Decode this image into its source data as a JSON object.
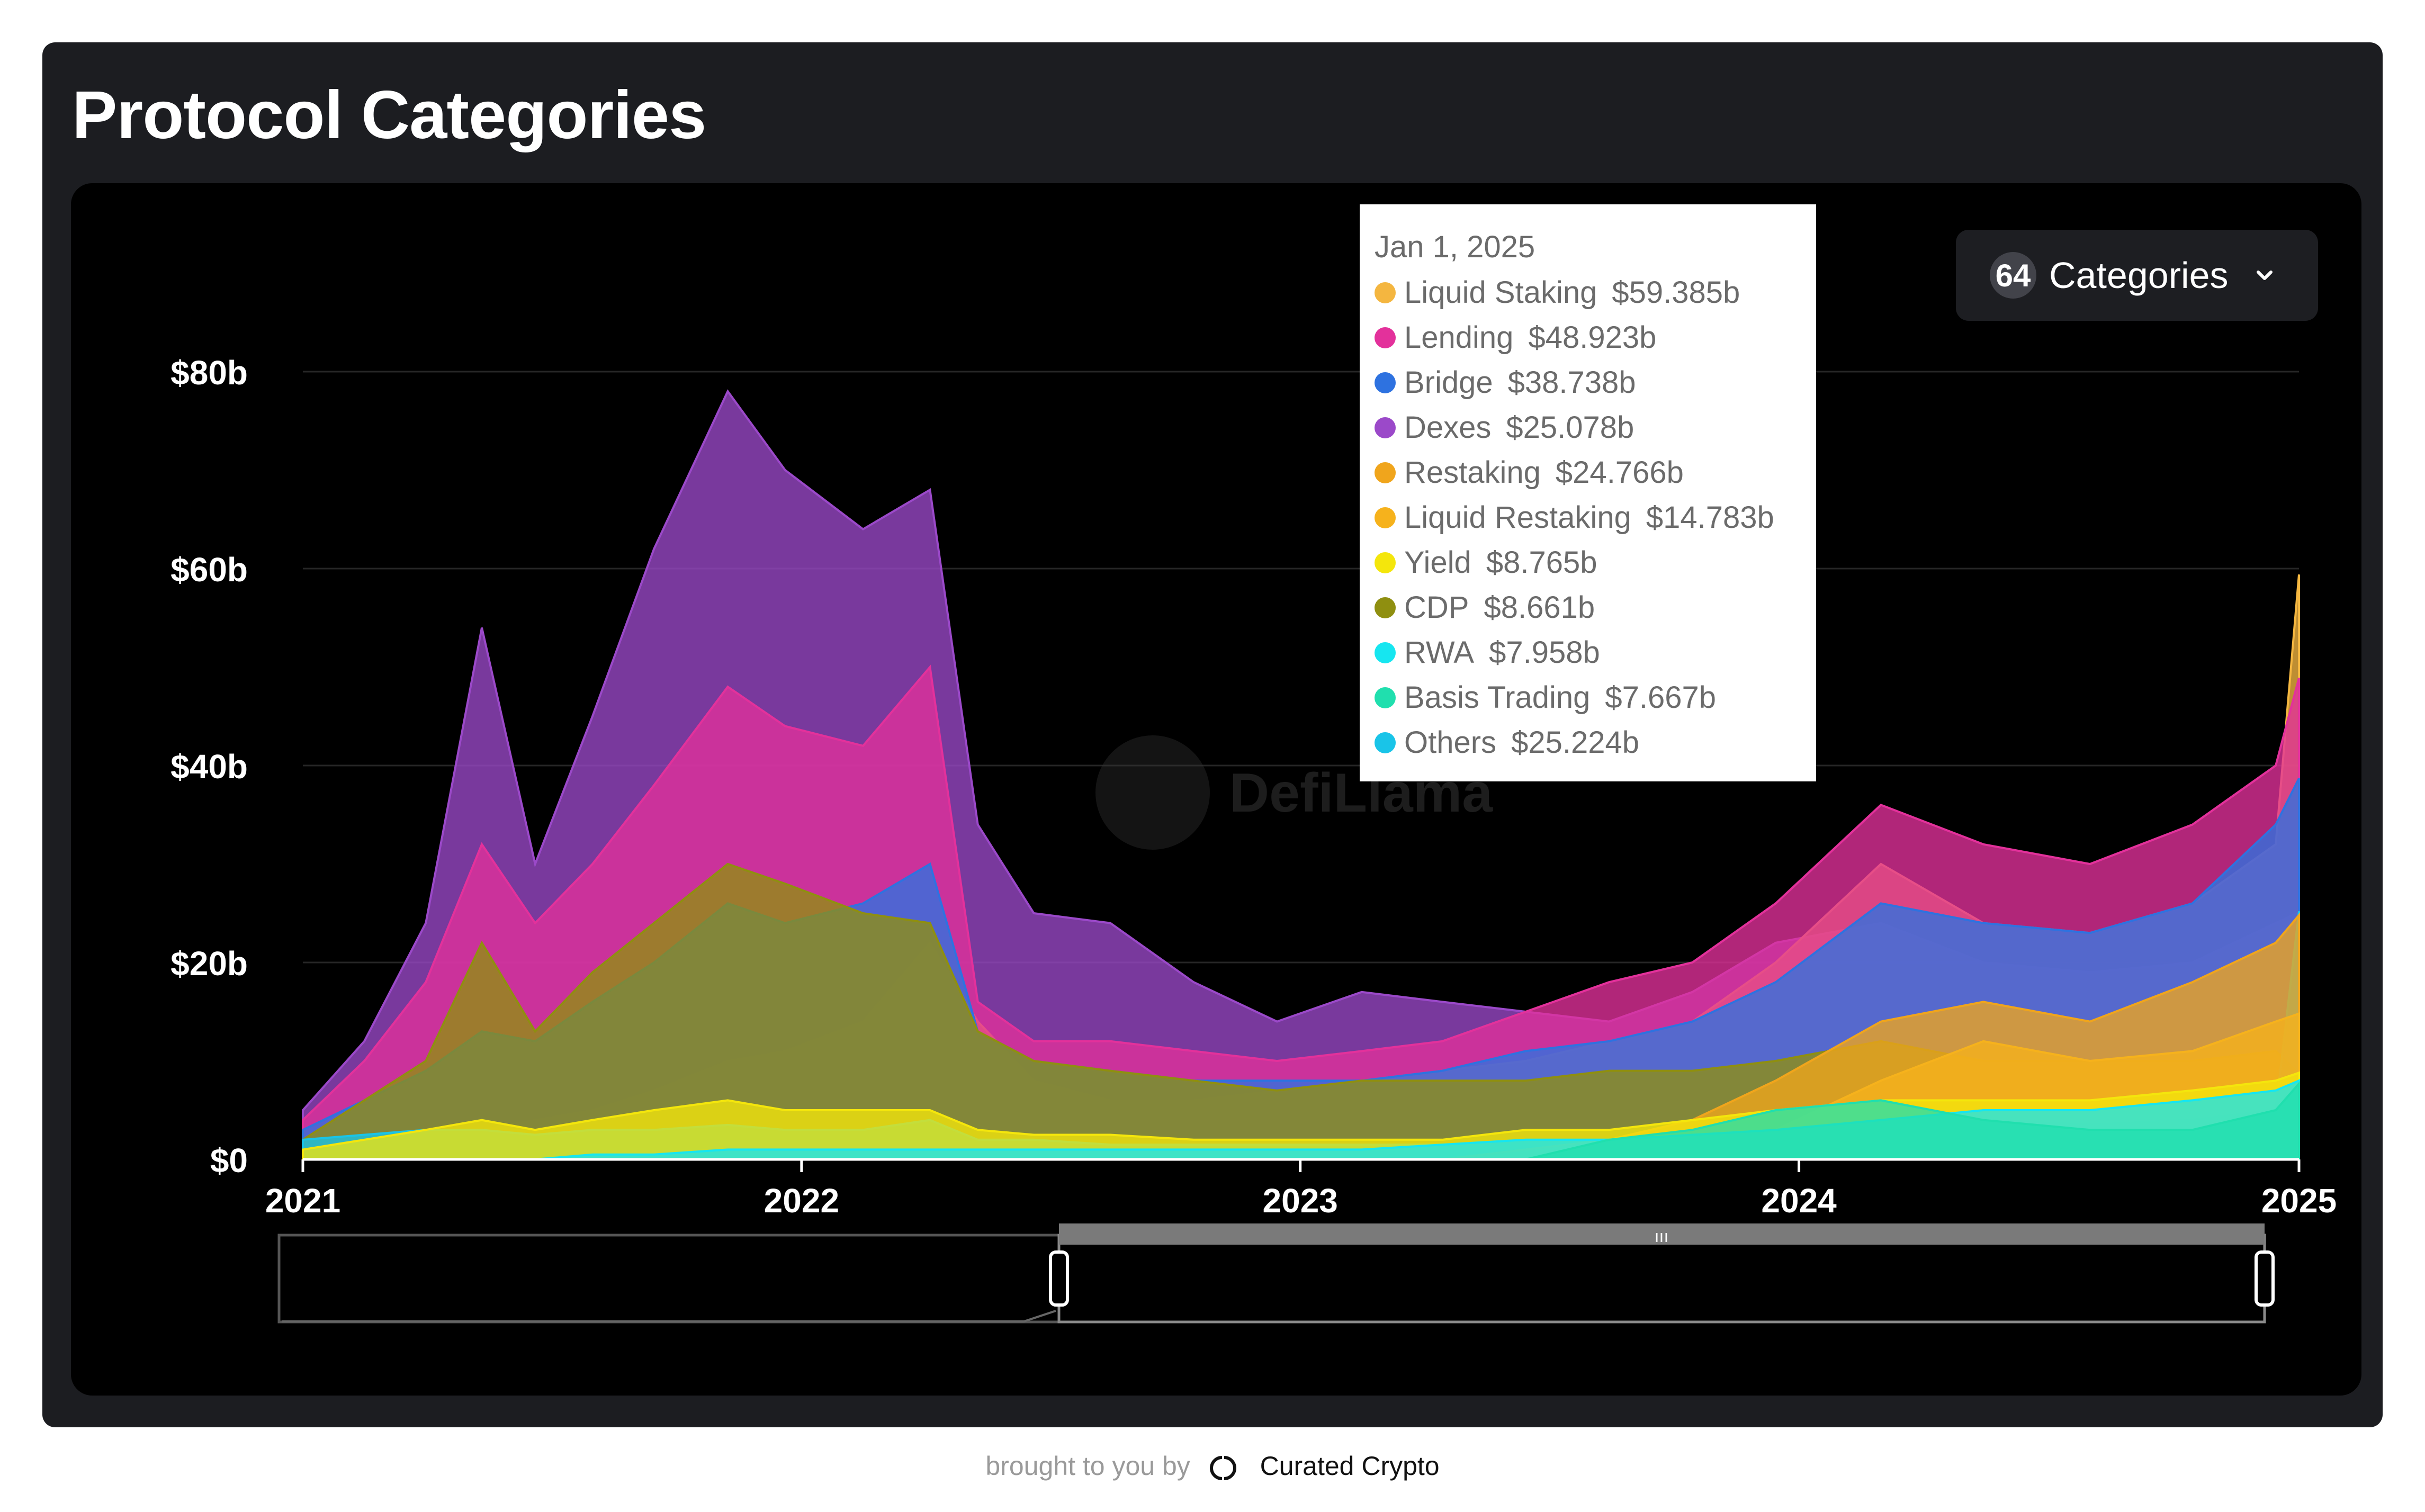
{
  "page": {
    "title": "Protocol Categories",
    "footer_prefix": "brought to you by",
    "footer_brand": "Curated Crypto"
  },
  "controls": {
    "categories_count": "64",
    "categories_label": "Categories"
  },
  "watermark": {
    "text": "DefiLlama"
  },
  "tooltip": {
    "date": "Jan 1, 2025",
    "rows": [
      {
        "name": "Liquid Staking",
        "value": "$59.385b",
        "color": "#f4b640"
      },
      {
        "name": "Lending",
        "value": "$48.923b",
        "color": "#e3319b"
      },
      {
        "name": "Bridge",
        "value": "$38.738b",
        "color": "#2e72e0"
      },
      {
        "name": "Dexes",
        "value": "$25.078b",
        "color": "#9b49c9"
      },
      {
        "name": "Restaking",
        "value": "$24.766b",
        "color": "#f0a51c"
      },
      {
        "name": "Liquid Restaking",
        "value": "$14.783b",
        "color": "#f6b21c"
      },
      {
        "name": "Yield",
        "value": "$8.765b",
        "color": "#f4e60c"
      },
      {
        "name": "CDP",
        "value": "$8.661b",
        "color": "#8f8f10"
      },
      {
        "name": "RWA",
        "value": "$7.958b",
        "color": "#16e6f0"
      },
      {
        "name": "Basis Trading",
        "value": "$7.667b",
        "color": "#20dfae"
      },
      {
        "name": "Others",
        "value": "$25.224b",
        "color": "#19c4e8"
      }
    ]
  },
  "chart_data": {
    "type": "area",
    "x_ticks": [
      "2021",
      "2022",
      "2023",
      "2024",
      "2025"
    ],
    "y_ticks": [
      "$0",
      "$20b",
      "$40b",
      "$60b",
      "$80b"
    ],
    "ylim": [
      0,
      80
    ],
    "y_unit": "billions USD",
    "x": [
      "2021-01-01",
      "2021-02-15",
      "2021-04-01",
      "2021-05-12",
      "2021-06-20",
      "2021-08-01",
      "2021-09-15",
      "2021-11-08",
      "2021-12-20",
      "2022-02-15",
      "2022-04-05",
      "2022-05-10",
      "2022-06-20",
      "2022-08-15",
      "2022-10-15",
      "2022-12-15",
      "2023-02-15",
      "2023-04-15",
      "2023-06-15",
      "2023-08-15",
      "2023-10-15",
      "2023-12-15",
      "2024-03-01",
      "2024-05-15",
      "2024-08-01",
      "2024-10-15",
      "2024-12-15",
      "2025-01-01"
    ],
    "series": [
      {
        "name": "Liquid Staking",
        "color": "#f4b640",
        "values": [
          1,
          1.5,
          2,
          3,
          4,
          5,
          7,
          10,
          11,
          14,
          22,
          14,
          8,
          6,
          6,
          7,
          8,
          9,
          10,
          12,
          14,
          20,
          30,
          24,
          23,
          26,
          32,
          59.4
        ]
      },
      {
        "name": "Lending",
        "color": "#e3319b",
        "values": [
          4,
          10,
          18,
          32,
          24,
          30,
          38,
          48,
          44,
          42,
          50,
          16,
          12,
          12,
          11,
          10,
          11,
          12,
          15,
          18,
          20,
          26,
          36,
          32,
          30,
          34,
          40,
          48.9
        ]
      },
      {
        "name": "Bridge",
        "color": "#2e72e0",
        "values": [
          3,
          6,
          9,
          13,
          12,
          16,
          20,
          26,
          24,
          26,
          30,
          13,
          10,
          9,
          8,
          8,
          8,
          9,
          11,
          12,
          14,
          18,
          26,
          24,
          23,
          26,
          34,
          38.7
        ]
      },
      {
        "name": "Dexes",
        "color": "#9b49c9",
        "values": [
          5,
          12,
          24,
          54,
          30,
          45,
          62,
          78,
          70,
          64,
          68,
          34,
          25,
          24,
          18,
          14,
          17,
          16,
          15,
          14,
          17,
          22,
          24,
          20,
          19,
          20,
          24,
          25.1
        ]
      },
      {
        "name": "Restaking",
        "color": "#f0a51c",
        "values": [
          0,
          0,
          0,
          0,
          0,
          0,
          0,
          0,
          0,
          0,
          0,
          0,
          0,
          0,
          0,
          0,
          0,
          0,
          1,
          2,
          4,
          8,
          14,
          16,
          14,
          18,
          22,
          24.8
        ]
      },
      {
        "name": "Liquid Restaking",
        "color": "#f6b21c",
        "values": [
          0,
          0,
          0,
          0,
          0,
          0,
          0,
          0,
          0,
          0,
          0,
          0,
          0,
          0,
          0,
          0,
          0,
          0,
          0,
          0,
          1,
          3,
          8,
          12,
          10,
          11,
          14,
          14.8
        ]
      },
      {
        "name": "Yield",
        "color": "#f4e60c",
        "values": [
          1,
          2,
          3,
          4,
          3,
          4,
          5,
          6,
          5,
          5,
          5,
          3,
          2.5,
          2.5,
          2,
          2,
          2,
          2,
          3,
          3,
          4,
          5,
          6,
          6,
          6,
          7,
          8,
          8.8
        ]
      },
      {
        "name": "CDP",
        "color": "#8f8f10",
        "values": [
          2,
          6,
          10,
          22,
          13,
          19,
          24,
          30,
          28,
          25,
          24,
          13,
          10,
          9,
          8,
          7,
          8,
          8,
          8,
          9,
          9,
          10,
          12,
          10,
          10,
          10,
          11,
          8.7
        ]
      },
      {
        "name": "RWA",
        "color": "#16e6f0",
        "values": [
          0,
          0,
          0,
          0,
          0,
          0.5,
          0.5,
          1,
          1,
          1,
          1,
          1,
          1,
          1,
          1,
          1,
          1,
          1.5,
          2,
          2,
          2.5,
          3,
          4,
          5,
          5,
          6,
          7,
          8
        ]
      },
      {
        "name": "Basis Trading",
        "color": "#20dfae",
        "values": [
          0,
          0,
          0,
          0,
          0,
          0,
          0,
          0,
          0,
          0,
          0,
          0,
          0,
          0,
          0,
          0,
          0,
          0,
          0,
          2,
          3,
          5,
          6,
          4,
          3,
          3,
          5,
          7.7
        ]
      },
      {
        "name": "Others",
        "color": "#19c4e8",
        "values": [
          2,
          2.5,
          3,
          3,
          2.5,
          3,
          3,
          3.5,
          3,
          3,
          4,
          2,
          2,
          1.5,
          1.5,
          1.5,
          1.5,
          1.5,
          2,
          2,
          2.5,
          3,
          4,
          4,
          3.5,
          4,
          5,
          25.2
        ]
      }
    ]
  }
}
